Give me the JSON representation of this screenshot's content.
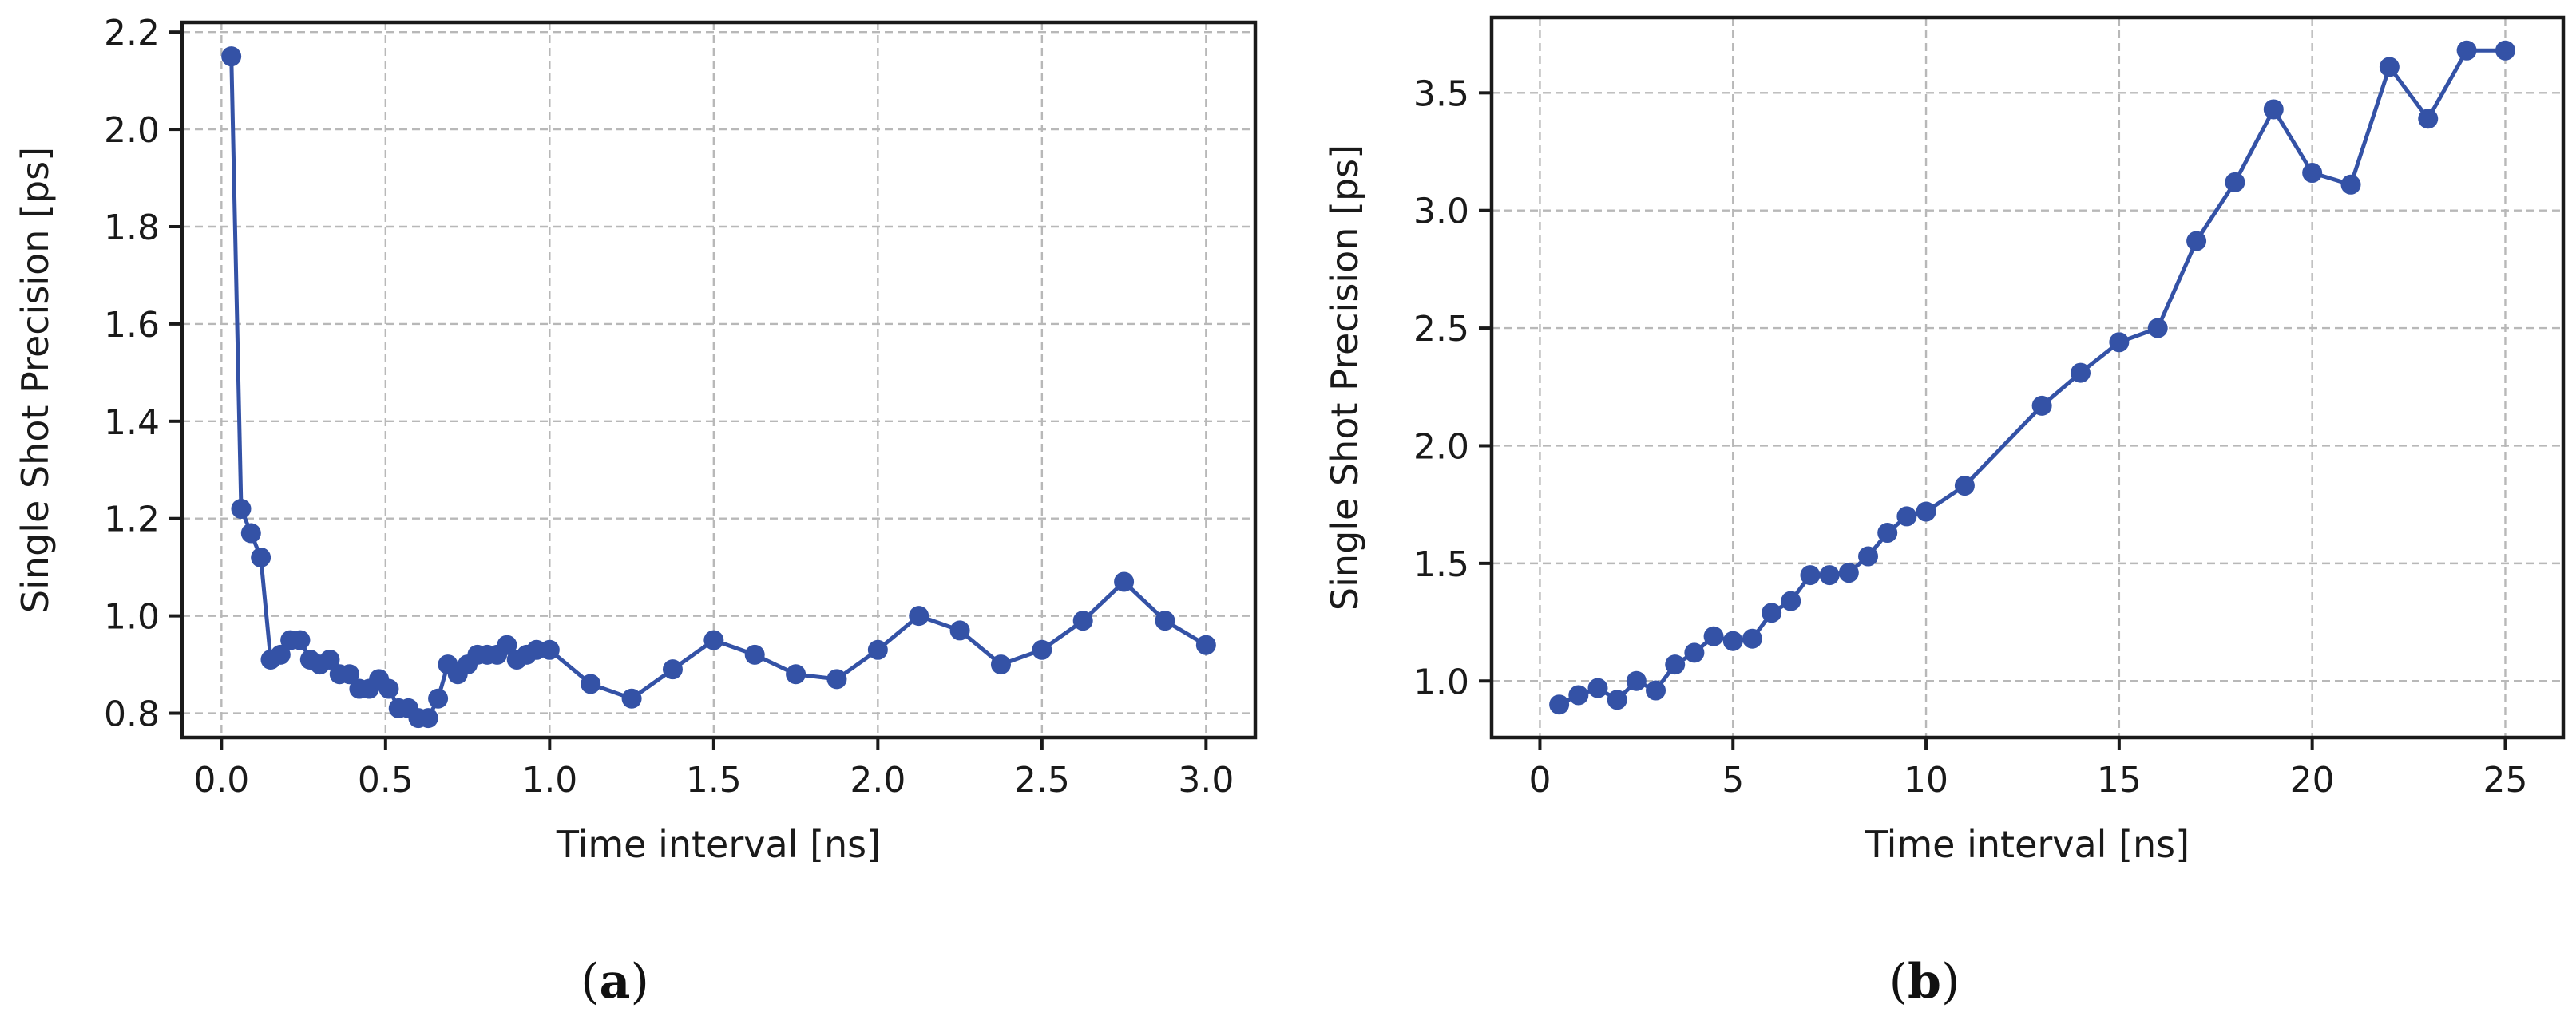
{
  "chart_data": [
    {
      "panel": "a",
      "type": "line",
      "xlabel": "Time interval [ns]",
      "ylabel": "Single Shot Precision [ps]",
      "xlim": [
        -0.12,
        3.15
      ],
      "ylim": [
        0.75,
        2.22
      ],
      "xticks": [
        0.0,
        0.5,
        1.0,
        1.5,
        2.0,
        2.5,
        3.0
      ],
      "xtick_labels": [
        "0.0",
        "0.5",
        "1.0",
        "1.5",
        "2.0",
        "2.5",
        "3.0"
      ],
      "yticks": [
        0.8,
        1.0,
        1.2,
        1.4,
        1.6,
        1.8,
        2.0,
        2.2
      ],
      "ytick_labels": [
        "0.8",
        "1.0",
        "1.2",
        "1.4",
        "1.6",
        "1.8",
        "2.0",
        "2.2"
      ],
      "grid": true,
      "color": "#3452a6",
      "x": [
        0.03,
        0.06,
        0.09,
        0.12,
        0.15,
        0.18,
        0.21,
        0.24,
        0.27,
        0.3,
        0.33,
        0.36,
        0.39,
        0.42,
        0.45,
        0.48,
        0.51,
        0.54,
        0.57,
        0.6,
        0.63,
        0.66,
        0.69,
        0.72,
        0.75,
        0.78,
        0.81,
        0.84,
        0.87,
        0.9,
        0.93,
        0.96,
        1.0,
        1.125,
        1.25,
        1.375,
        1.5,
        1.625,
        1.75,
        1.875,
        2.0,
        2.125,
        2.25,
        2.375,
        2.5,
        2.625,
        2.75,
        2.875,
        3.0
      ],
      "y": [
        2.15,
        1.22,
        1.17,
        1.12,
        0.91,
        0.92,
        0.95,
        0.95,
        0.91,
        0.9,
        0.91,
        0.88,
        0.88,
        0.85,
        0.85,
        0.87,
        0.85,
        0.81,
        0.81,
        0.79,
        0.79,
        0.83,
        0.9,
        0.88,
        0.9,
        0.92,
        0.92,
        0.92,
        0.94,
        0.91,
        0.92,
        0.93,
        0.93,
        0.86,
        0.83,
        0.89,
        0.95,
        0.92,
        0.88,
        0.87,
        0.93,
        1.0,
        0.97,
        0.9,
        0.93,
        0.99,
        1.07,
        0.99,
        0.94
      ]
    },
    {
      "panel": "b",
      "type": "line",
      "xlabel": "Time interval [ns]",
      "ylabel": "Single Shot Precision [ps]",
      "xlim": [
        -1.25,
        26.5
      ],
      "ylim": [
        0.76,
        3.82
      ],
      "xticks": [
        0,
        5,
        10,
        15,
        20,
        25
      ],
      "xtick_labels": [
        "0",
        "5",
        "10",
        "15",
        "20",
        "25"
      ],
      "yticks": [
        1.0,
        1.5,
        2.0,
        2.5,
        3.0,
        3.5
      ],
      "ytick_labels": [
        "1.0",
        "1.5",
        "2.0",
        "2.5",
        "3.0",
        "3.5"
      ],
      "grid": true,
      "color": "#3452a6",
      "x": [
        0.5,
        1.0,
        1.5,
        2.0,
        2.5,
        3.0,
        3.5,
        4.0,
        4.5,
        5.0,
        5.5,
        6.0,
        6.5,
        7.0,
        7.5,
        8.0,
        8.5,
        9.0,
        9.5,
        10.0,
        11.0,
        13.0,
        14.0,
        15.0,
        16.0,
        17.0,
        18.0,
        19.0,
        20.0,
        21.0,
        22.0,
        23.0,
        24.0,
        25.0
      ],
      "y": [
        0.9,
        0.94,
        0.97,
        0.92,
        1.0,
        0.96,
        1.07,
        1.12,
        1.19,
        1.17,
        1.18,
        1.29,
        1.34,
        1.45,
        1.45,
        1.46,
        1.53,
        1.63,
        1.7,
        1.72,
        1.83,
        2.17,
        2.31,
        2.44,
        2.5,
        2.87,
        3.12,
        3.43,
        3.16,
        3.11,
        3.61,
        3.39,
        3.68,
        3.68
      ]
    }
  ],
  "captions": [
    "(a)",
    "(b)"
  ]
}
